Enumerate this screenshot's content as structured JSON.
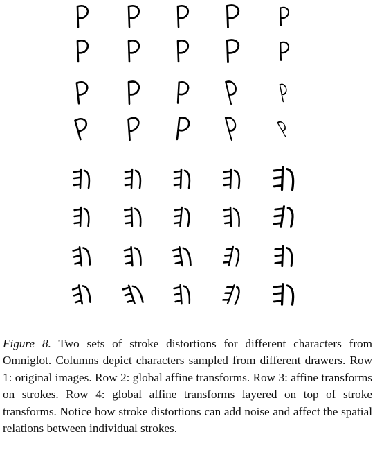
{
  "figure": {
    "sets": [
      {
        "character": "omniglot-character-a",
        "rows": 4,
        "columns": 5
      },
      {
        "character": "omniglot-character-b",
        "rows": 4,
        "columns": 5
      }
    ]
  },
  "caption": {
    "label": "Figure 8.",
    "text": "Two sets of stroke distortions for different characters from Omniglot. Columns depict characters sampled from different drawers. Row 1: original images. Row 2: global affine transforms. Row 3: affine transforms on strokes. Row 4: global affine transforms layered on top of stroke transforms. Notice how stroke distortions can add noise and affect the spatial relations between individual strokes."
  }
}
